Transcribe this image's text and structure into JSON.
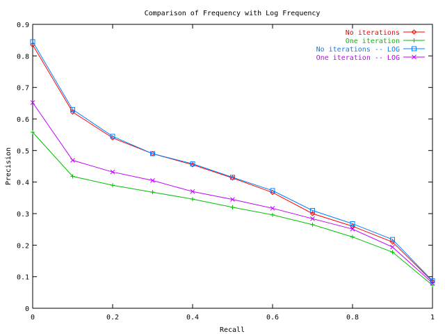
{
  "chart_data": {
    "type": "line",
    "title": "Comparison of Frequency with Log Frequency",
    "xlabel": "Recall",
    "ylabel": "Precision",
    "xlim": [
      0,
      1
    ],
    "ylim": [
      0,
      0.9
    ],
    "grid": false,
    "legend_position": "top-right",
    "x_ticks": [
      0,
      0.2,
      0.4,
      0.6,
      0.8,
      1
    ],
    "x_tick_labels": [
      "0",
      "0.2",
      "0.4",
      "0.6",
      "0.8",
      "1"
    ],
    "y_ticks": [
      0,
      0.1,
      0.2,
      0.3,
      0.4,
      0.5,
      0.6,
      0.7,
      0.8,
      0.9
    ],
    "y_tick_labels": [
      "0",
      "0.1",
      "0.2",
      "0.3",
      "0.4",
      "0.5",
      "0.6",
      "0.7",
      "0.8",
      "0.9"
    ],
    "x": [
      0,
      0.1,
      0.2,
      0.3,
      0.4,
      0.5,
      0.6,
      0.7,
      0.8,
      0.9,
      1
    ],
    "series": [
      {
        "name": "No iterations",
        "color": "#ff0000",
        "marker": "diamond",
        "values": [
          0.835,
          0.622,
          0.54,
          0.49,
          0.455,
          0.413,
          0.367,
          0.3,
          0.26,
          0.21,
          0.085
        ]
      },
      {
        "name": "One iteration",
        "color": "#00c000",
        "marker": "plus",
        "values": [
          0.558,
          0.418,
          0.39,
          0.368,
          0.346,
          0.32,
          0.296,
          0.265,
          0.226,
          0.178,
          0.073
        ]
      },
      {
        "name": "No iterations -- LOG",
        "color": "#0080ff",
        "marker": "square",
        "values": [
          0.845,
          0.63,
          0.545,
          0.49,
          0.458,
          0.415,
          0.373,
          0.31,
          0.268,
          0.218,
          0.087
        ]
      },
      {
        "name": "One iteration -- LOG",
        "color": "#c000ff",
        "marker": "cross",
        "values": [
          0.652,
          0.469,
          0.432,
          0.405,
          0.37,
          0.345,
          0.317,
          0.284,
          0.251,
          0.194,
          0.08
        ]
      }
    ]
  }
}
